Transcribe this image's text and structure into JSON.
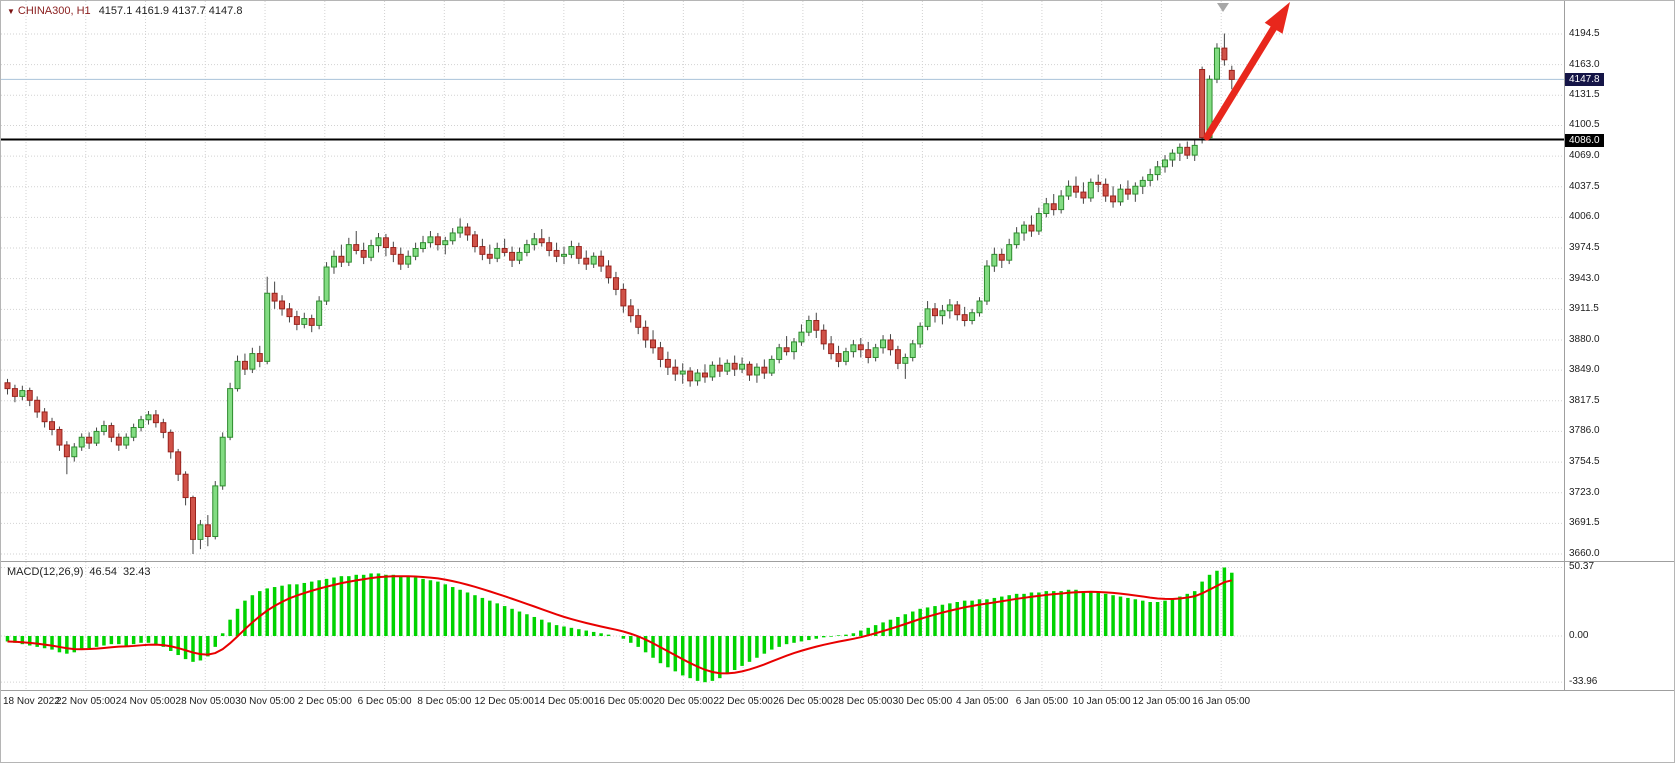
{
  "header": {
    "symbol": "CHINA300, H1",
    "ohlc": "4157.1 4161.9 4137.7 4147.8",
    "dropdown_icon": "▼"
  },
  "price_axis": {
    "labels": [
      "4194.5",
      "4163.0",
      "4131.5",
      "4100.5",
      "4069.0",
      "4037.5",
      "4006.0",
      "3974.5",
      "3943.0",
      "3911.5",
      "3880.0",
      "3849.0",
      "3817.5",
      "3786.0",
      "3754.5",
      "3723.0",
      "3691.5",
      "3660.0"
    ],
    "bid_badge": "4147.8",
    "line_badge": "4086.0"
  },
  "time_axis": {
    "labels": [
      "18 Nov 2022",
      "22 Nov 05:00",
      "24 Nov 05:00",
      "28 Nov 05:00",
      "30 Nov 05:00",
      "2 Dec 05:00",
      "6 Dec 05:00",
      "8 Dec 05:00",
      "12 Dec 05:00",
      "14 Dec 05:00",
      "16 Dec 05:00",
      "20 Dec 05:00",
      "22 Dec 05:00",
      "26 Dec 05:00",
      "28 Dec 05:00",
      "30 Dec 05:00",
      "4 Jan 05:00",
      "6 Jan 05:00",
      "10 Jan 05:00",
      "12 Jan 05:00",
      "16 Jan 05:00"
    ]
  },
  "macd_panel": {
    "name": "MACD(12,26,9)",
    "value_main": "46.54",
    "value_signal": "32.43",
    "axis_labels": [
      "50.37",
      "0.00",
      "-33.96"
    ]
  },
  "colors": {
    "bull_fill": "#82dc82",
    "bull_stroke": "#2e8b2e",
    "bear_fill": "#d05248",
    "bear_stroke": "#99231d",
    "wick": "#444444",
    "grid": "#d2d2d2",
    "support_line": "#000000",
    "bid_line": "#a9c3d9",
    "macd_hist": "#00d300",
    "macd_signal": "#e80000",
    "arrow": "#e8271c",
    "bid_badge_bg": "#151547",
    "line_badge_bg": "#000000"
  },
  "chart_data": [
    {
      "type": "candlestick",
      "title": "CHINA300, H1",
      "ylim": [
        3660.0,
        4194.5
      ],
      "y_ticks": [
        4194.5,
        4163.0,
        4131.5,
        4100.5,
        4069.0,
        4037.5,
        4006.0,
        3974.5,
        3943.0,
        3911.5,
        3880.0,
        3849.0,
        3817.5,
        3786.0,
        3754.5,
        3723.0,
        3691.5,
        3660.0
      ],
      "x_labels": [
        "18 Nov 2022",
        "22 Nov 05:00",
        "24 Nov 05:00",
        "28 Nov 05:00",
        "30 Nov 05:00",
        "2 Dec 05:00",
        "6 Dec 05:00",
        "8 Dec 05:00",
        "12 Dec 05:00",
        "14 Dec 05:00",
        "16 Dec 05:00",
        "20 Dec 05:00",
        "22 Dec 05:00",
        "26 Dec 05:00",
        "28 Dec 05:00",
        "30 Dec 05:00",
        "4 Jan 05:00",
        "6 Jan 05:00",
        "10 Jan 05:00",
        "12 Jan 05:00",
        "16 Jan 05:00"
      ],
      "horizontal_line": 4086.0,
      "bid_price": 4147.8,
      "last_bar": {
        "open": 4157.1,
        "high": 4161.9,
        "low": 4137.7,
        "close": 4147.8
      },
      "annotations": [
        {
          "type": "trend-arrow",
          "direction": "up-right",
          "color": "#e8271c"
        }
      ],
      "candles": [
        [
          3836,
          3840,
          3824,
          3830
        ],
        [
          3830,
          3834,
          3816,
          3822
        ],
        [
          3822,
          3833,
          3818,
          3828
        ],
        [
          3828,
          3831,
          3812,
          3818
        ],
        [
          3818,
          3822,
          3800,
          3806
        ],
        [
          3806,
          3810,
          3790,
          3796
        ],
        [
          3796,
          3800,
          3782,
          3788
        ],
        [
          3788,
          3791,
          3766,
          3772
        ],
        [
          3772,
          3776,
          3742,
          3760
        ],
        [
          3760,
          3774,
          3755,
          3770
        ],
        [
          3770,
          3784,
          3766,
          3780
        ],
        [
          3780,
          3785,
          3768,
          3774
        ],
        [
          3774,
          3790,
          3771,
          3786
        ],
        [
          3786,
          3797,
          3782,
          3792
        ],
        [
          3792,
          3795,
          3775,
          3780
        ],
        [
          3780,
          3784,
          3766,
          3772
        ],
        [
          3772,
          3784,
          3768,
          3780
        ],
        [
          3780,
          3794,
          3776,
          3790
        ],
        [
          3790,
          3802,
          3786,
          3798
        ],
        [
          3798,
          3807,
          3793,
          3803
        ],
        [
          3803,
          3808,
          3790,
          3795
        ],
        [
          3795,
          3799,
          3779,
          3785
        ],
        [
          3785,
          3788,
          3758,
          3765
        ],
        [
          3765,
          3768,
          3735,
          3742
        ],
        [
          3742,
          3745,
          3710,
          3718
        ],
        [
          3718,
          3720,
          3660,
          3675
        ],
        [
          3675,
          3695,
          3665,
          3690
        ],
        [
          3690,
          3700,
          3668,
          3678
        ],
        [
          3678,
          3735,
          3675,
          3730
        ],
        [
          3730,
          3785,
          3726,
          3780
        ],
        [
          3780,
          3836,
          3777,
          3830
        ],
        [
          3830,
          3864,
          3827,
          3858
        ],
        [
          3858,
          3866,
          3844,
          3850
        ],
        [
          3850,
          3872,
          3846,
          3866
        ],
        [
          3866,
          3874,
          3852,
          3858
        ],
        [
          3858,
          3945,
          3855,
          3928
        ],
        [
          3928,
          3940,
          3912,
          3920
        ],
        [
          3920,
          3926,
          3905,
          3912
        ],
        [
          3912,
          3918,
          3898,
          3904
        ],
        [
          3904,
          3910,
          3890,
          3896
        ],
        [
          3896,
          3908,
          3892,
          3902
        ],
        [
          3902,
          3906,
          3888,
          3895
        ],
        [
          3895,
          3925,
          3891,
          3920
        ],
        [
          3920,
          3960,
          3916,
          3955
        ],
        [
          3955,
          3972,
          3948,
          3966
        ],
        [
          3966,
          3978,
          3955,
          3960
        ],
        [
          3960,
          3985,
          3956,
          3978
        ],
        [
          3978,
          3992,
          3968,
          3972
        ],
        [
          3972,
          3980,
          3958,
          3965
        ],
        [
          3965,
          3983,
          3961,
          3977
        ],
        [
          3977,
          3990,
          3970,
          3985
        ],
        [
          3985,
          3989,
          3966,
          3975
        ],
        [
          3975,
          3981,
          3960,
          3968
        ],
        [
          3968,
          3975,
          3952,
          3958
        ],
        [
          3958,
          3972,
          3954,
          3966
        ],
        [
          3966,
          3980,
          3962,
          3974
        ],
        [
          3974,
          3987,
          3970,
          3980
        ],
        [
          3980,
          3992,
          3975,
          3986
        ],
        [
          3986,
          3990,
          3972,
          3978
        ],
        [
          3978,
          3986,
          3968,
          3982
        ],
        [
          3982,
          3995,
          3978,
          3990
        ],
        [
          3990,
          4005,
          3985,
          3996
        ],
        [
          3996,
          4000,
          3982,
          3988
        ],
        [
          3988,
          3992,
          3970,
          3976
        ],
        [
          3976,
          3984,
          3962,
          3968
        ],
        [
          3968,
          3978,
          3958,
          3964
        ],
        [
          3964,
          3980,
          3960,
          3974
        ],
        [
          3974,
          3984,
          3966,
          3970
        ],
        [
          3970,
          3976,
          3955,
          3962
        ],
        [
          3962,
          3975,
          3958,
          3970
        ],
        [
          3970,
          3983,
          3966,
          3978
        ],
        [
          3978,
          3990,
          3972,
          3984
        ],
        [
          3984,
          3994,
          3976,
          3980
        ],
        [
          3980,
          3986,
          3966,
          3972
        ],
        [
          3972,
          3980,
          3960,
          3966
        ],
        [
          3966,
          3976,
          3958,
          3968
        ],
        [
          3968,
          3982,
          3964,
          3976
        ],
        [
          3976,
          3980,
          3958,
          3964
        ],
        [
          3964,
          3972,
          3952,
          3958
        ],
        [
          3958,
          3970,
          3954,
          3966
        ],
        [
          3966,
          3972,
          3950,
          3956
        ],
        [
          3956,
          3962,
          3938,
          3944
        ],
        [
          3944,
          3950,
          3926,
          3932
        ],
        [
          3932,
          3938,
          3908,
          3915
        ],
        [
          3915,
          3922,
          3898,
          3905
        ],
        [
          3905,
          3912,
          3886,
          3893
        ],
        [
          3893,
          3900,
          3872,
          3880
        ],
        [
          3880,
          3890,
          3866,
          3872
        ],
        [
          3872,
          3878,
          3852,
          3860
        ],
        [
          3860,
          3868,
          3844,
          3852
        ],
        [
          3852,
          3860,
          3838,
          3845
        ],
        [
          3845,
          3856,
          3835,
          3848
        ],
        [
          3848,
          3852,
          3832,
          3838
        ],
        [
          3838,
          3850,
          3833,
          3846
        ],
        [
          3846,
          3855,
          3836,
          3842
        ],
        [
          3842,
          3858,
          3838,
          3854
        ],
        [
          3854,
          3862,
          3842,
          3848
        ],
        [
          3848,
          3860,
          3844,
          3856
        ],
        [
          3856,
          3864,
          3843,
          3850
        ],
        [
          3850,
          3862,
          3846,
          3855
        ],
        [
          3855,
          3858,
          3838,
          3844
        ],
        [
          3844,
          3856,
          3836,
          3852
        ],
        [
          3852,
          3860,
          3840,
          3846
        ],
        [
          3846,
          3864,
          3843,
          3860
        ],
        [
          3860,
          3876,
          3856,
          3872
        ],
        [
          3872,
          3884,
          3864,
          3868
        ],
        [
          3868,
          3882,
          3860,
          3878
        ],
        [
          3878,
          3896,
          3874,
          3888
        ],
        [
          3888,
          3905,
          3884,
          3900
        ],
        [
          3900,
          3908,
          3882,
          3890
        ],
        [
          3890,
          3896,
          3870,
          3876
        ],
        [
          3876,
          3884,
          3860,
          3866
        ],
        [
          3866,
          3874,
          3852,
          3858
        ],
        [
          3858,
          3872,
          3854,
          3868
        ],
        [
          3868,
          3880,
          3862,
          3875
        ],
        [
          3875,
          3882,
          3862,
          3870
        ],
        [
          3870,
          3878,
          3856,
          3862
        ],
        [
          3862,
          3876,
          3858,
          3872
        ],
        [
          3872,
          3885,
          3866,
          3880
        ],
        [
          3880,
          3886,
          3864,
          3870
        ],
        [
          3870,
          3874,
          3850,
          3856
        ],
        [
          3856,
          3866,
          3840,
          3862
        ],
        [
          3862,
          3880,
          3858,
          3876
        ],
        [
          3876,
          3898,
          3872,
          3894
        ],
        [
          3894,
          3920,
          3890,
          3912
        ],
        [
          3912,
          3918,
          3898,
          3905
        ],
        [
          3905,
          3916,
          3896,
          3910
        ],
        [
          3910,
          3922,
          3902,
          3916
        ],
        [
          3916,
          3920,
          3900,
          3906
        ],
        [
          3906,
          3914,
          3894,
          3900
        ],
        [
          3900,
          3912,
          3896,
          3908
        ],
        [
          3908,
          3924,
          3904,
          3920
        ],
        [
          3920,
          3962,
          3916,
          3956
        ],
        [
          3956,
          3975,
          3950,
          3968
        ],
        [
          3968,
          3974,
          3954,
          3962
        ],
        [
          3962,
          3984,
          3958,
          3978
        ],
        [
          3978,
          3996,
          3974,
          3990
        ],
        [
          3990,
          4002,
          3982,
          3998
        ],
        [
          3998,
          4008,
          3986,
          3992
        ],
        [
          3992,
          4016,
          3988,
          4010
        ],
        [
          4010,
          4026,
          4006,
          4020
        ],
        [
          4020,
          4030,
          4008,
          4014
        ],
        [
          4014,
          4034,
          4010,
          4028
        ],
        [
          4028,
          4044,
          4024,
          4038
        ],
        [
          4038,
          4048,
          4026,
          4032
        ],
        [
          4032,
          4042,
          4020,
          4026
        ],
        [
          4026,
          4046,
          4022,
          4042
        ],
        [
          4042,
          4050,
          4032,
          4040
        ],
        [
          4040,
          4046,
          4022,
          4028
        ],
        [
          4028,
          4038,
          4016,
          4022
        ],
        [
          4022,
          4040,
          4018,
          4035
        ],
        [
          4035,
          4044,
          4024,
          4030
        ],
        [
          4030,
          4042,
          4022,
          4038
        ],
        [
          4038,
          4048,
          4030,
          4044
        ],
        [
          4044,
          4056,
          4038,
          4050
        ],
        [
          4050,
          4064,
          4044,
          4058
        ],
        [
          4058,
          4070,
          4052,
          4065
        ],
        [
          4065,
          4076,
          4058,
          4072
        ],
        [
          4072,
          4082,
          4064,
          4078
        ],
        [
          4078,
          4084,
          4066,
          4070
        ],
        [
          4070,
          4086,
          4064,
          4080
        ],
        [
          4158,
          4161,
          4082,
          4088
        ],
        [
          4088,
          4152,
          4086,
          4148
        ],
        [
          4148,
          4185,
          4144,
          4180
        ],
        [
          4180,
          4195,
          4162,
          4168
        ],
        [
          4157.1,
          4161.9,
          4137.7,
          4147.8
        ]
      ]
    },
    {
      "type": "bar",
      "name": "MACD(12,26,9) histogram with signal line",
      "ylim": [
        -33.96,
        50.37
      ],
      "y_ticks": [
        50.37,
        0.0,
        -33.96
      ],
      "main_last": 46.54,
      "signal_last": 32.43,
      "values": [
        -4,
        -5,
        -6,
        -7,
        -8,
        -9,
        -10,
        -12,
        -13,
        -12,
        -10,
        -9,
        -8,
        -7,
        -6,
        -6,
        -7,
        -6,
        -5,
        -5,
        -6,
        -8,
        -11,
        -14,
        -17,
        -19,
        -18,
        -15,
        -8,
        2,
        12,
        20,
        26,
        30,
        33,
        35,
        36,
        37,
        38,
        38,
        39,
        40,
        41,
        42,
        43,
        44,
        44,
        45,
        45,
        46,
        46,
        45,
        45,
        44,
        44,
        43,
        42,
        41,
        40,
        38,
        36,
        34,
        32,
        30,
        28,
        26,
        24,
        22,
        20,
        18,
        16,
        14,
        12,
        10,
        8,
        7,
        6,
        5,
        4,
        3,
        2,
        1,
        0,
        -2,
        -5,
        -8,
        -12,
        -16,
        -20,
        -23,
        -26,
        -29,
        -31,
        -33,
        -33.96,
        -33,
        -31,
        -28,
        -25,
        -22,
        -19,
        -16,
        -13,
        -10,
        -8,
        -6,
        -5,
        -4,
        -3,
        -2,
        -1,
        -0.5,
        0.5,
        1,
        2,
        4,
        6,
        8,
        10,
        12,
        14,
        16,
        18,
        20,
        21,
        22,
        23,
        24,
        25,
        26,
        26,
        27,
        27,
        28,
        29,
        30,
        31,
        31,
        32,
        32,
        33,
        33,
        33,
        34,
        34,
        33,
        33,
        32,
        31,
        30,
        29,
        28,
        27,
        26,
        25,
        25,
        26,
        27,
        29,
        31,
        33,
        40,
        45,
        48,
        50.37,
        46.54
      ]
    }
  ]
}
